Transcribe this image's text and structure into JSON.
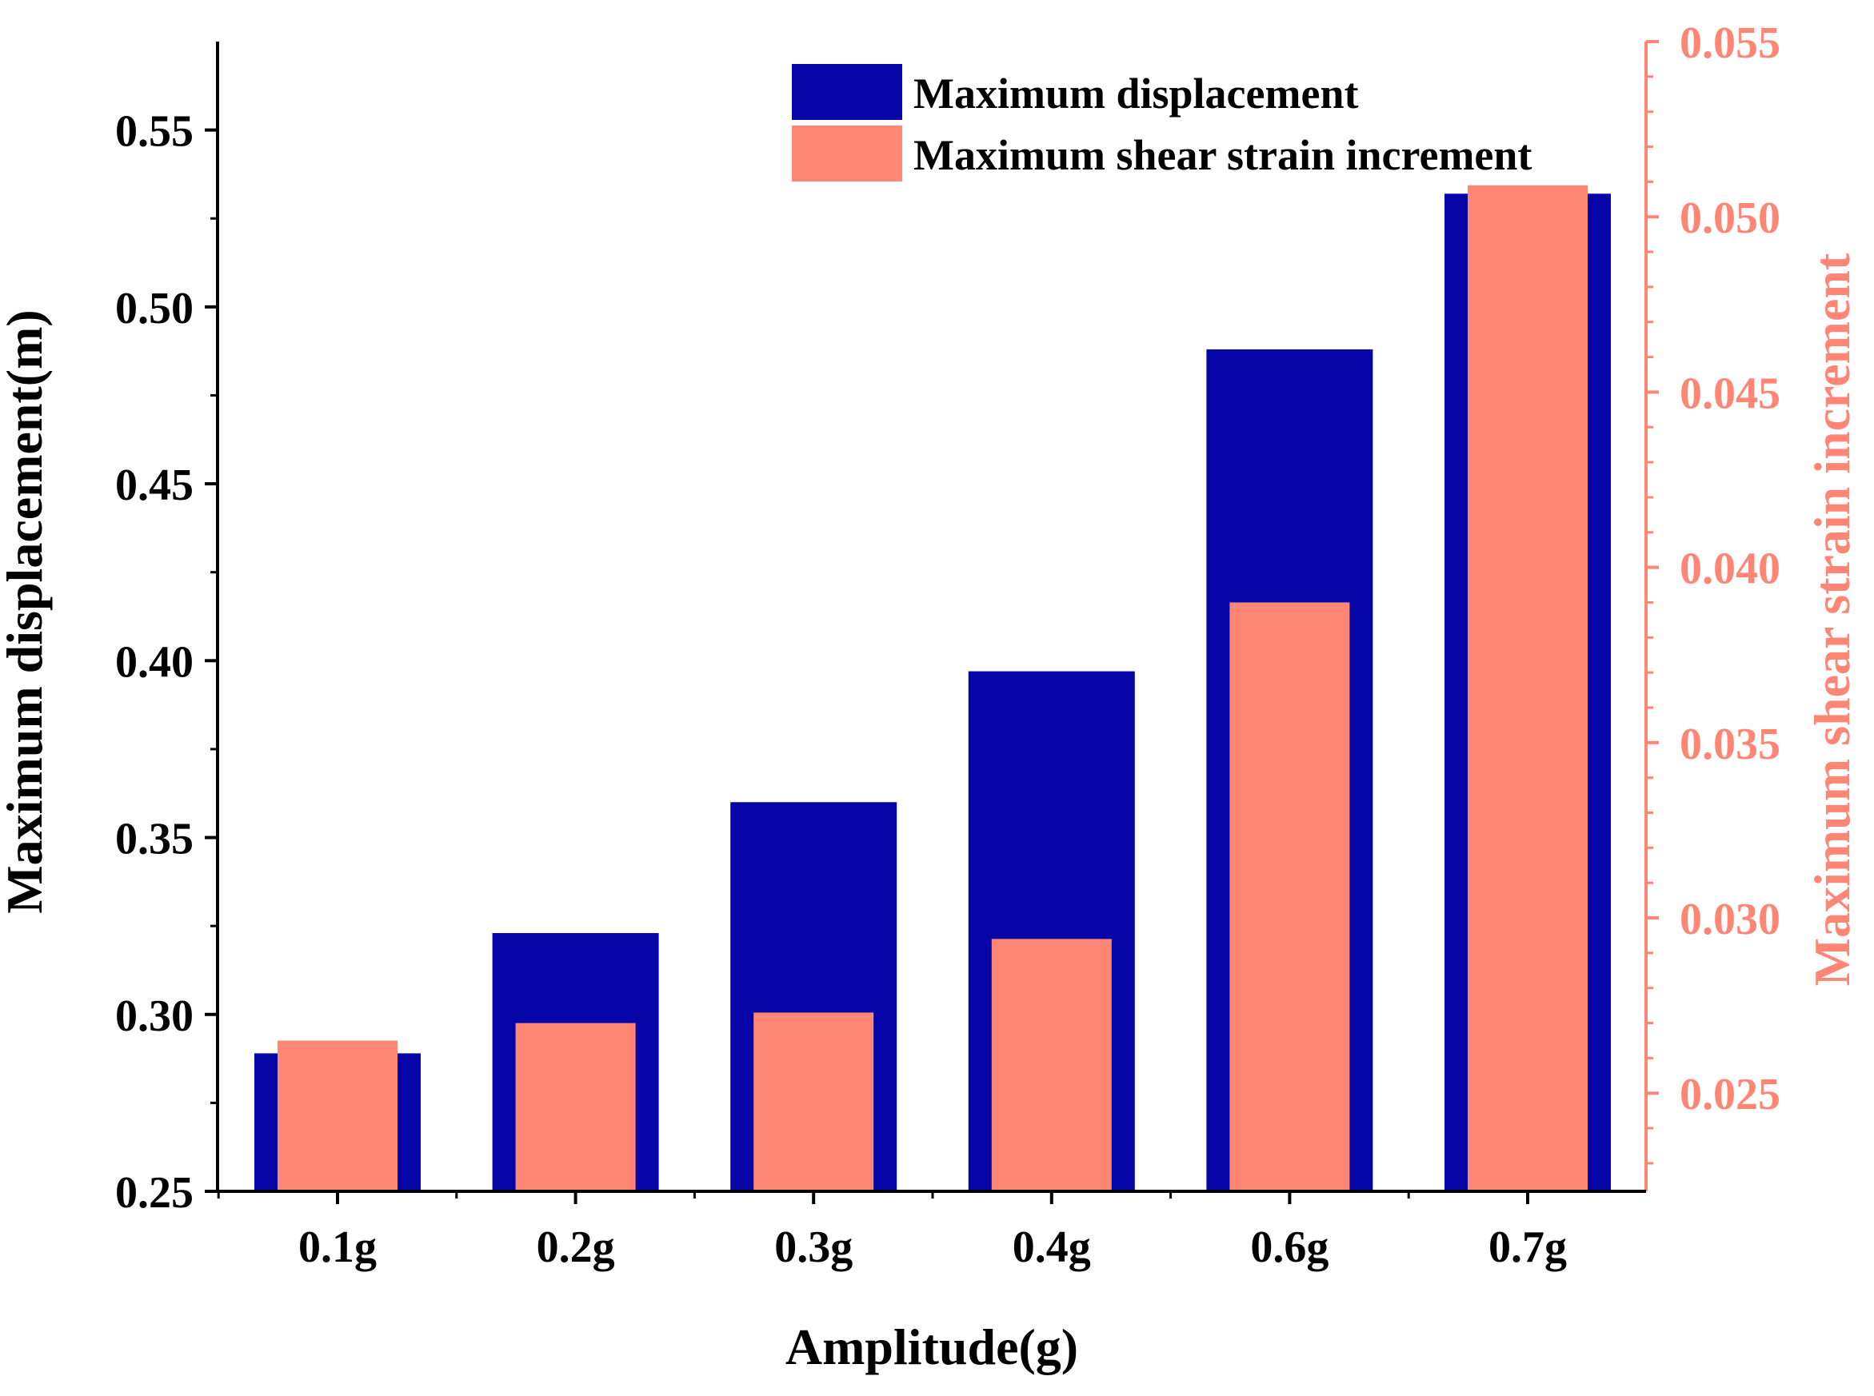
{
  "colors": {
    "primary_bar": "#0505A8",
    "secondary_bar": "#FF8674",
    "axis_black": "#000000",
    "axis_right": "#FF8674",
    "background": "#FFFFFF"
  },
  "chart_data": {
    "type": "bar",
    "categories": [
      "0.1g",
      "0.2g",
      "0.3g",
      "0.4g",
      "0.6g",
      "0.7g"
    ],
    "series": [
      {
        "name": "Maximum displacement",
        "axis": "left",
        "values": [
          0.289,
          0.323,
          0.36,
          0.397,
          0.488,
          0.532
        ]
      },
      {
        "name": "Maximum shear strain increment",
        "axis": "right",
        "values": [
          0.0265,
          0.027,
          0.0273,
          0.0294,
          0.039,
          0.0509
        ]
      }
    ],
    "xlabel": "Amplitude(g)",
    "ylabel": "Maximum displacement(m)",
    "y2label": "Maximum shear strain increment",
    "ylim": [
      0.25,
      0.575
    ],
    "y2lim": [
      0.0222,
      0.055
    ],
    "yticks": [
      0.25,
      0.3,
      0.35,
      0.4,
      0.45,
      0.5,
      0.55
    ],
    "ytick_labels": [
      "0.25",
      "0.30",
      "0.35",
      "0.40",
      "0.45",
      "0.50",
      "0.55"
    ],
    "y2ticks": [
      0.025,
      0.03,
      0.035,
      0.04,
      0.045,
      0.05,
      0.055
    ],
    "y2tick_labels": [
      "0.025",
      "0.030",
      "0.035",
      "0.040",
      "0.045",
      "0.050",
      "0.055"
    ],
    "legend_position": "top-right",
    "grid": false
  }
}
